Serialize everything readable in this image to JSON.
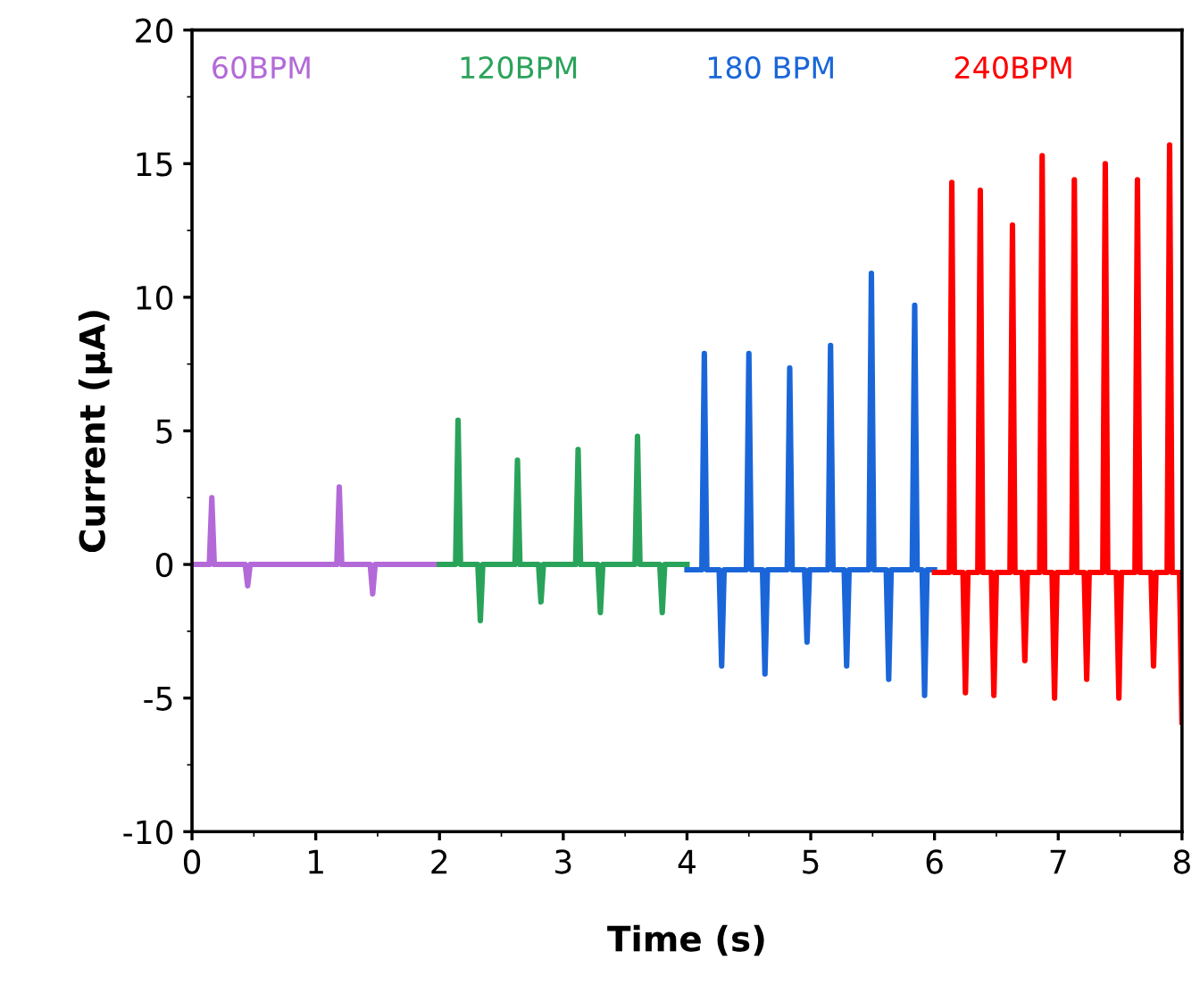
{
  "chart_data": {
    "type": "line",
    "xlabel": "Time (s)",
    "ylabel": "Current (μA)",
    "xlim": [
      0,
      8
    ],
    "ylim": [
      -10,
      20
    ],
    "xticks": [
      0,
      1,
      2,
      3,
      4,
      5,
      6,
      7,
      8
    ],
    "yticks": [
      -10,
      -5,
      0,
      5,
      10,
      15,
      20
    ],
    "grid": false,
    "legend": false,
    "marker": "none",
    "line_style": "solid",
    "series": [
      {
        "name": "60BPM",
        "color": "#b36ad8",
        "x": [
          0,
          0.14,
          0.16,
          0.18,
          0.43,
          0.45,
          0.47,
          1.17,
          1.19,
          1.21,
          1.44,
          1.46,
          1.48,
          2.0
        ],
        "values": [
          0,
          0,
          2.5,
          0,
          0,
          -0.8,
          0,
          0,
          2.9,
          0,
          0,
          -1.1,
          0,
          0
        ]
      },
      {
        "name": "120BPM",
        "color": "#2aa35a",
        "x": [
          2.0,
          2.13,
          2.15,
          2.17,
          2.31,
          2.33,
          2.35,
          2.61,
          2.63,
          2.65,
          2.8,
          2.82,
          2.84,
          3.1,
          3.12,
          3.14,
          3.28,
          3.3,
          3.32,
          3.58,
          3.6,
          3.62,
          3.78,
          3.8,
          3.82,
          4.0
        ],
        "values": [
          0,
          0,
          5.4,
          0,
          0,
          -2.1,
          0,
          0,
          3.9,
          0,
          0,
          -1.4,
          0,
          0,
          4.3,
          0,
          0,
          -1.8,
          0,
          0,
          4.8,
          0,
          0,
          -1.8,
          0,
          0
        ]
      },
      {
        "name": "180 BPM",
        "color": "#1a66d9",
        "x": [
          4.0,
          4.12,
          4.14,
          4.16,
          4.26,
          4.28,
          4.3,
          4.48,
          4.5,
          4.52,
          4.61,
          4.63,
          4.65,
          4.81,
          4.83,
          4.85,
          4.95,
          4.97,
          4.99,
          5.14,
          5.16,
          5.18,
          5.27,
          5.29,
          5.31,
          5.47,
          5.49,
          5.51,
          5.61,
          5.63,
          5.65,
          5.82,
          5.84,
          5.86,
          5.9,
          5.92,
          5.94,
          6.0
        ],
        "values": [
          -0.2,
          -0.2,
          7.9,
          -0.2,
          -0.2,
          -3.8,
          -0.2,
          -0.2,
          7.9,
          -0.2,
          -0.2,
          -4.1,
          -0.2,
          -0.2,
          7.35,
          -0.2,
          -0.2,
          -2.9,
          -0.2,
          -0.2,
          8.2,
          -0.2,
          -0.2,
          -3.8,
          -0.2,
          -0.2,
          10.9,
          -0.2,
          -0.2,
          -4.3,
          -0.2,
          -0.2,
          9.7,
          -0.2,
          -0.2,
          -4.9,
          -0.2,
          -0.2
        ]
      },
      {
        "name": "240BPM",
        "color": "#ff0000",
        "x": [
          6.0,
          6.12,
          6.14,
          6.16,
          6.23,
          6.25,
          6.27,
          6.35,
          6.37,
          6.39,
          6.46,
          6.48,
          6.5,
          6.61,
          6.63,
          6.65,
          6.71,
          6.73,
          6.75,
          6.85,
          6.87,
          6.89,
          6.95,
          6.97,
          6.99,
          7.11,
          7.13,
          7.15,
          7.21,
          7.23,
          7.25,
          7.36,
          7.38,
          7.4,
          7.47,
          7.49,
          7.51,
          7.62,
          7.64,
          7.66,
          7.75,
          7.77,
          7.79,
          7.88,
          7.9,
          7.92,
          7.98,
          8.0
        ],
        "values": [
          -0.3,
          -0.3,
          14.3,
          -0.3,
          -0.3,
          -4.8,
          -0.3,
          -0.3,
          14.0,
          -0.3,
          -0.3,
          -4.9,
          -0.3,
          -0.3,
          12.7,
          -0.3,
          -0.3,
          -3.6,
          -0.3,
          -0.3,
          15.3,
          -0.3,
          -0.3,
          -5.0,
          -0.3,
          -0.3,
          14.4,
          -0.3,
          -0.3,
          -4.3,
          -0.3,
          -0.3,
          15.0,
          -0.3,
          -0.3,
          -5.0,
          -0.3,
          -0.3,
          14.4,
          -0.3,
          -0.3,
          -3.8,
          -0.3,
          -0.3,
          15.7,
          -0.3,
          -0.3,
          -5.9
        ]
      }
    ]
  }
}
